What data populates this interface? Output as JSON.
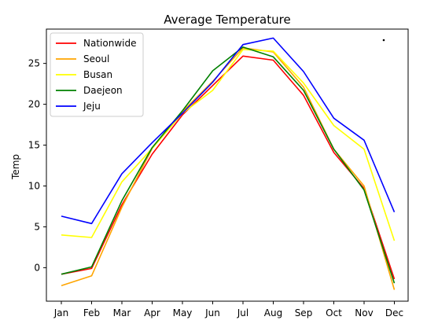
{
  "chart_data": {
    "type": "line",
    "title": "Average Temperature",
    "xlabel": "",
    "ylabel": "Temp",
    "categories": [
      "Jan",
      "Feb",
      "Mar",
      "Apr",
      "May",
      "Jun",
      "Jul",
      "Aug",
      "Sep",
      "Oct",
      "Nov",
      "Dec"
    ],
    "yticks": [
      0,
      5,
      10,
      15,
      20,
      25
    ],
    "ylim": [
      -4.1,
      29.2
    ],
    "grid": false,
    "legend_position": "top-left",
    "series": [
      {
        "name": "Nationwide",
        "color": "#ff0000",
        "values": [
          -0.8,
          -0.1,
          7.7,
          13.9,
          18.7,
          22.3,
          25.9,
          25.4,
          21.1,
          14.1,
          9.7,
          -1.4
        ]
      },
      {
        "name": "Seoul",
        "color": "#ffa500",
        "values": [
          -2.2,
          -1.0,
          7.4,
          14.6,
          19.1,
          22.8,
          26.9,
          26.4,
          22.1,
          14.5,
          10.0,
          -2.7
        ]
      },
      {
        "name": "Busan",
        "color": "#ffff00",
        "values": [
          4.0,
          3.7,
          10.5,
          14.6,
          18.9,
          21.7,
          26.7,
          26.5,
          22.6,
          17.4,
          14.5,
          3.3
        ]
      },
      {
        "name": "Daejeon",
        "color": "#008000",
        "values": [
          -0.8,
          0.1,
          8.2,
          14.7,
          19.2,
          24.1,
          27.0,
          25.8,
          21.7,
          14.5,
          9.5,
          -1.9
        ]
      },
      {
        "name": "Jeju",
        "color": "#0000ff",
        "values": [
          6.3,
          5.4,
          11.5,
          15.3,
          18.9,
          22.7,
          27.3,
          28.1,
          24.0,
          18.3,
          15.6,
          6.8
        ]
      }
    ]
  }
}
